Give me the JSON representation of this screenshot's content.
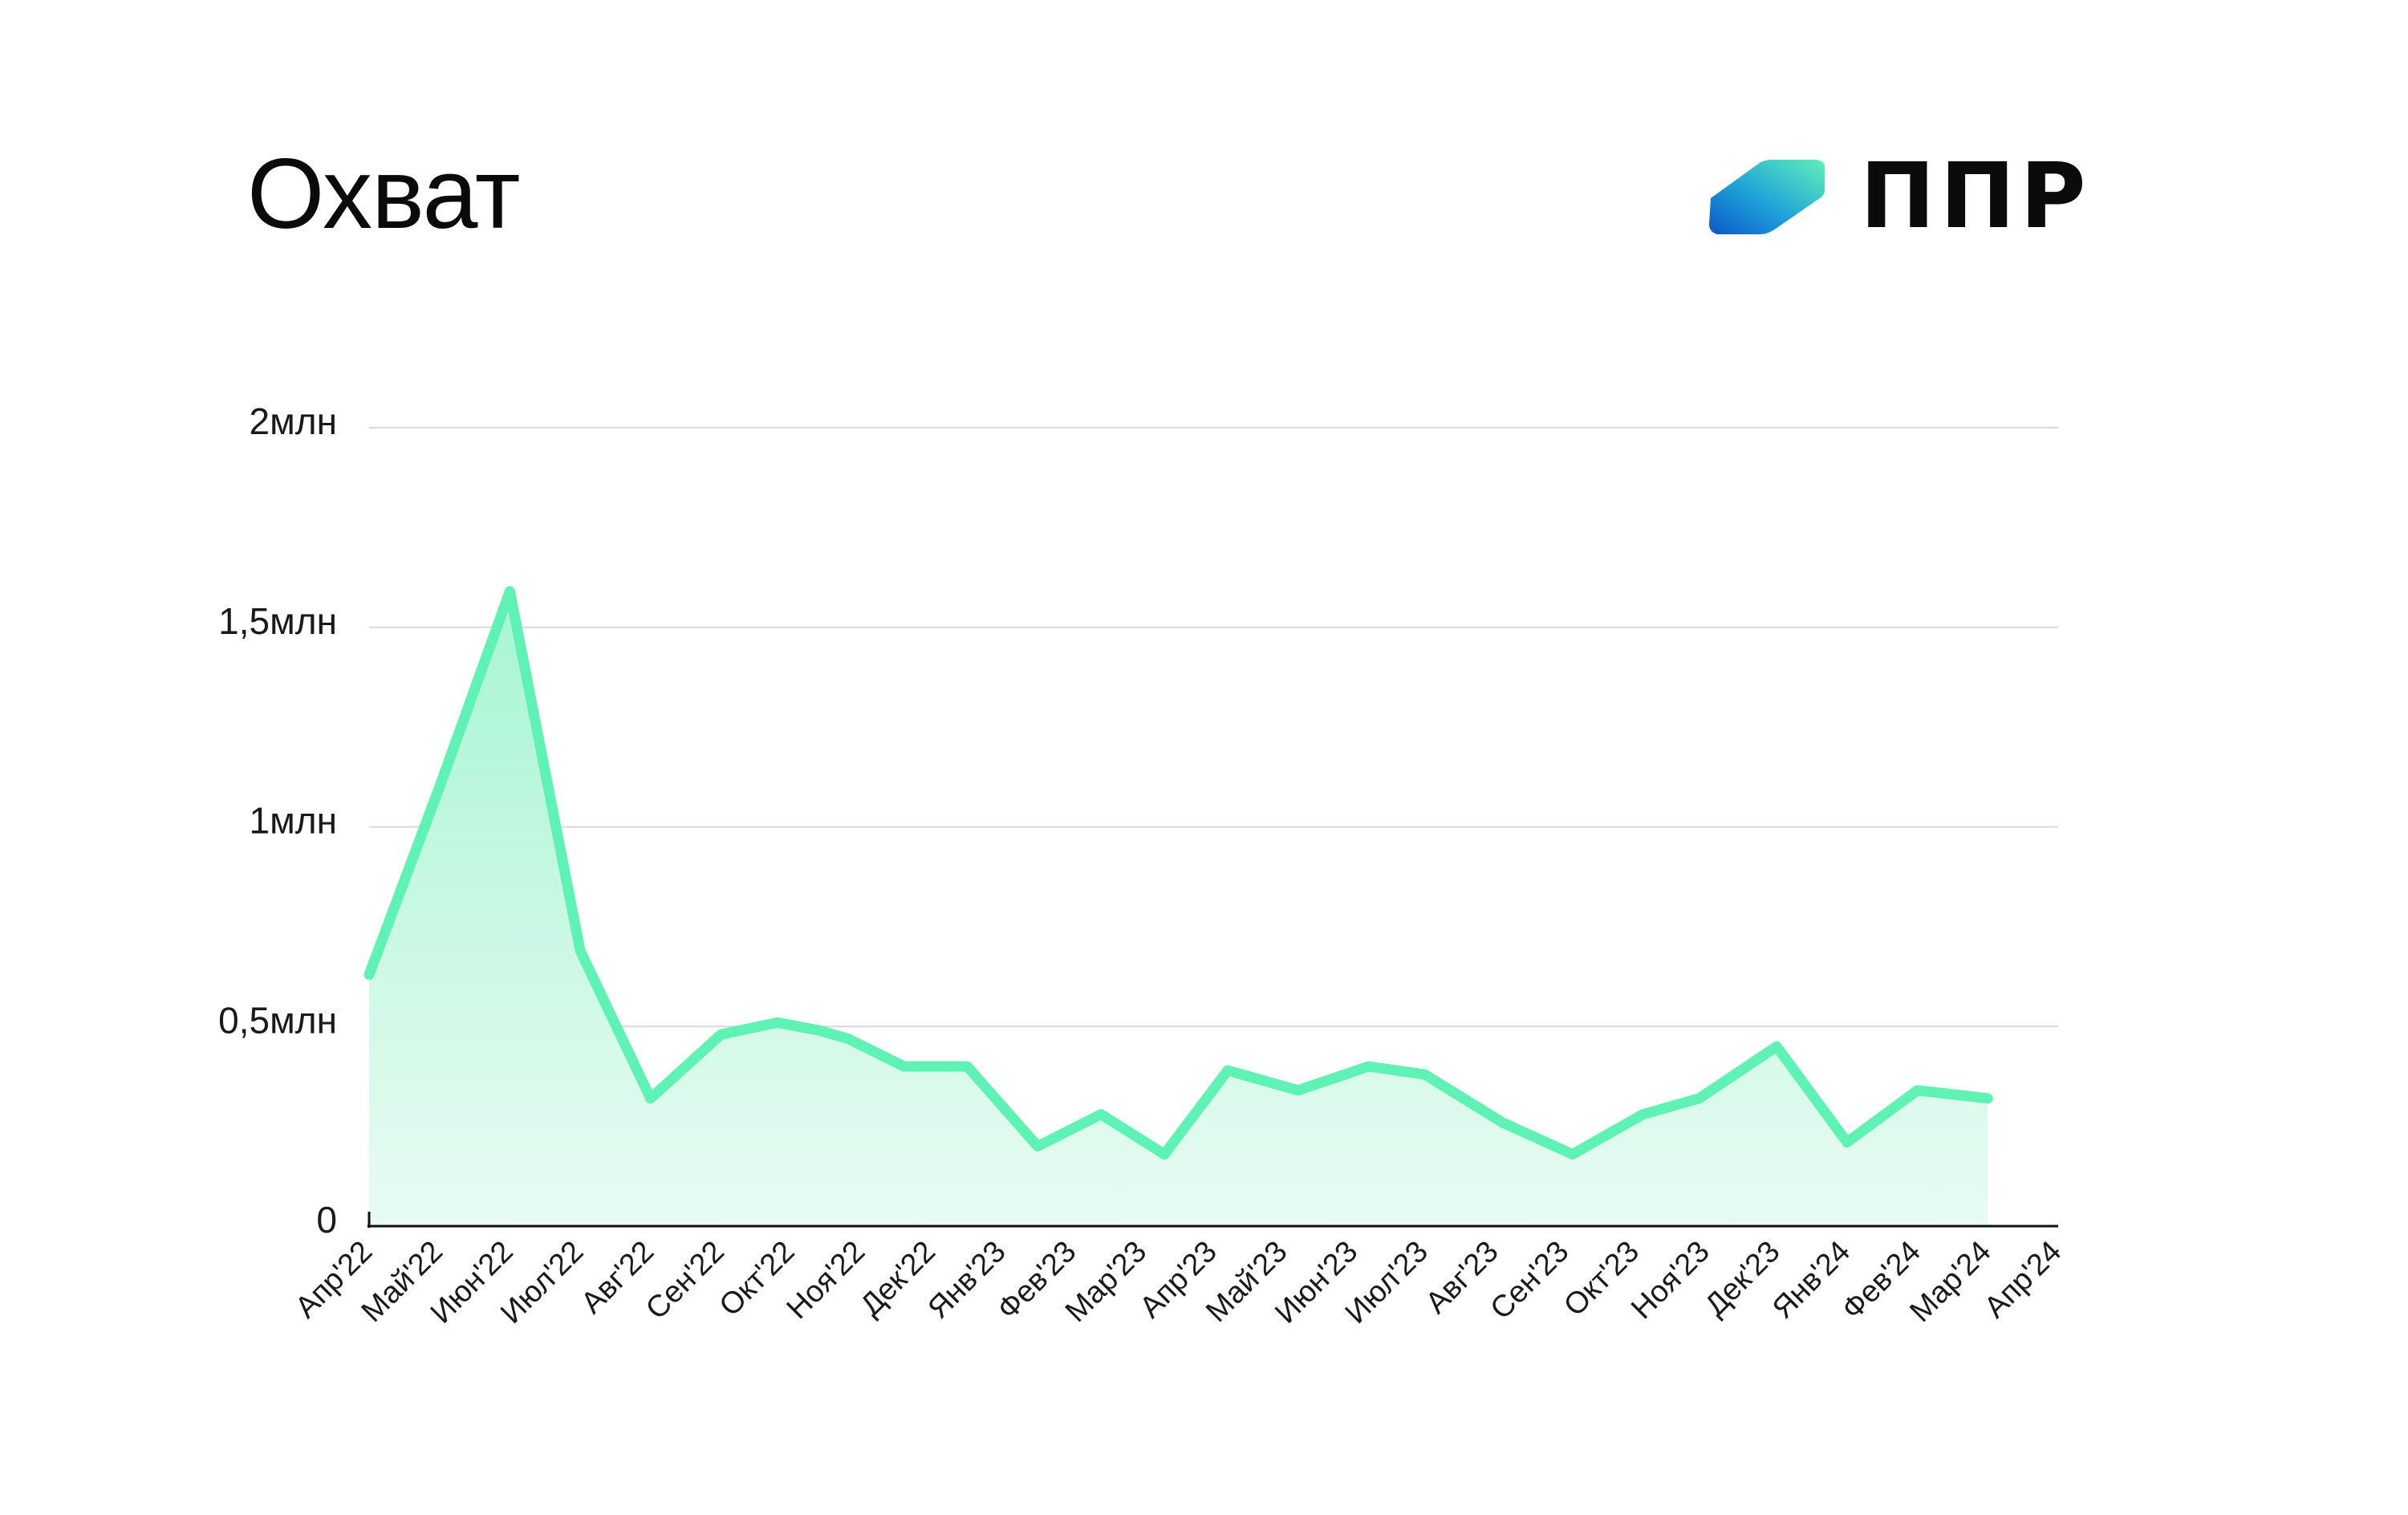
{
  "header": {
    "title": "Охват",
    "logo_text": "ППР",
    "logo_icon": "diamond-gradient-icon"
  },
  "colors": {
    "line": "#5EF2B4",
    "area_top": "#A6F5D2",
    "area_bottom": "#E9FBF3",
    "grid": "#D9D9D9",
    "axis": "#111111",
    "logo_gradient": [
      "#0B58C8",
      "#1FA3D8",
      "#60F0B8"
    ]
  },
  "chart_data": {
    "type": "area",
    "title": "Охват",
    "xlabel": "",
    "ylabel": "",
    "ylim": [
      0,
      2000000
    ],
    "grid": true,
    "y_ticks": [
      {
        "value": 0,
        "label": "0"
      },
      {
        "value": 500000,
        "label": "0,5млн"
      },
      {
        "value": 1000000,
        "label": "1млн"
      },
      {
        "value": 1500000,
        "label": "1,5млн"
      },
      {
        "value": 2000000,
        "label": "2млн"
      }
    ],
    "categories": [
      "Апр'22",
      "Май'22",
      "Июн'22",
      "Июл'22",
      "Авг'22",
      "Сен'22",
      "Окт'22",
      "Ноя'22",
      "Дек'22",
      "Янв'23",
      "Фев'23",
      "Мар'23",
      "Апр'23",
      "Май'23",
      "Июн'23",
      "Июл'23",
      "Авг'23",
      "Сен'23",
      "Окт'23",
      "Ноя'23",
      "Дек'23",
      "Янв'24",
      "Фев'24",
      "Мар'24",
      "Апр'24"
    ],
    "series": [
      {
        "points": [
          {
            "x": 0,
            "y": 630000
          },
          {
            "x": 1,
            "y": 1100000
          },
          {
            "x": 2,
            "y": 1590000
          },
          {
            "x": 3,
            "y": 690000
          },
          {
            "x": 4,
            "y": 320000
          },
          {
            "x": 5,
            "y": 480000
          },
          {
            "x": 5.8,
            "y": 510000
          },
          {
            "x": 6.4,
            "y": 490000
          },
          {
            "x": 6.8,
            "y": 470000
          },
          {
            "x": 7.6,
            "y": 400000
          },
          {
            "x": 8.5,
            "y": 400000
          },
          {
            "x": 9.5,
            "y": 200000
          },
          {
            "x": 10.4,
            "y": 280000
          },
          {
            "x": 11.3,
            "y": 180000
          },
          {
            "x": 12.2,
            "y": 390000
          },
          {
            "x": 13.2,
            "y": 340000
          },
          {
            "x": 14.2,
            "y": 400000
          },
          {
            "x": 15.0,
            "y": 380000
          },
          {
            "x": 16.1,
            "y": 260000
          },
          {
            "x": 17.1,
            "y": 180000
          },
          {
            "x": 18.1,
            "y": 280000
          },
          {
            "x": 18.9,
            "y": 320000
          },
          {
            "x": 20.0,
            "y": 450000
          },
          {
            "x": 21.0,
            "y": 210000
          },
          {
            "x": 22.0,
            "y": 340000
          },
          {
            "x": 23.0,
            "y": 320000
          }
        ]
      }
    ]
  }
}
